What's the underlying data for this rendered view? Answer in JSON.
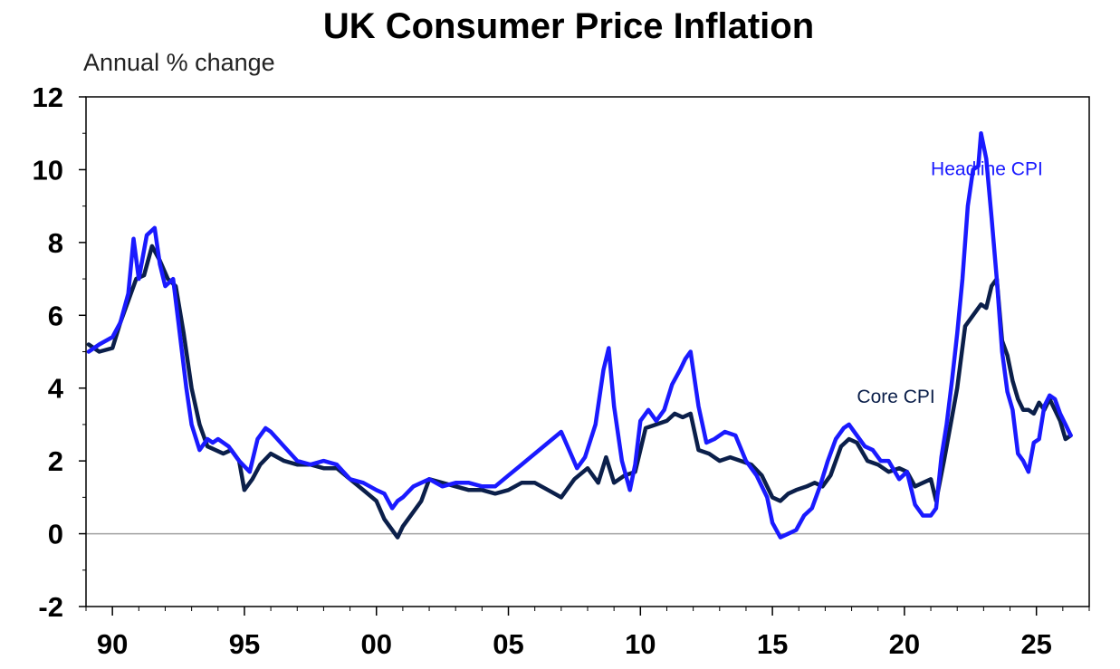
{
  "chart_data": {
    "type": "line",
    "title": "UK Consumer Price Inflation",
    "subtitle": "Annual % change",
    "xlabel": "",
    "ylabel": "",
    "xlim": [
      1989.0,
      2027.0
    ],
    "ylim": [
      -2,
      12
    ],
    "x_ticks": [
      {
        "x": 1990,
        "label": "90"
      },
      {
        "x": 1995,
        "label": "95"
      },
      {
        "x": 2000,
        "label": "00"
      },
      {
        "x": 2005,
        "label": "05"
      },
      {
        "x": 2010,
        "label": "10"
      },
      {
        "x": 2015,
        "label": "15"
      },
      {
        "x": 2020,
        "label": "20"
      },
      {
        "x": 2025,
        "label": "25"
      }
    ],
    "y_ticks": [
      12,
      10,
      8,
      6,
      4,
      2,
      0,
      -2
    ],
    "grid": false,
    "zero_line": true,
    "colors": {
      "headline": "#1a1aff",
      "core": "#0b1f4a",
      "zero_line": "#a0a0a0",
      "frame": "#000000"
    },
    "series": [
      {
        "name": "Headline CPI",
        "color": "#1a1aff",
        "x": [
          1989.1,
          1989.5,
          1990.0,
          1990.3,
          1990.6,
          1990.8,
          1991.0,
          1991.3,
          1991.6,
          1991.8,
          1992.0,
          1992.3,
          1992.5,
          1992.8,
          1993.0,
          1993.3,
          1993.6,
          1993.8,
          1994.0,
          1994.4,
          1994.8,
          1995.2,
          1995.5,
          1995.8,
          1996.0,
          1996.5,
          1997.0,
          1997.5,
          1998.0,
          1998.5,
          1999.0,
          1999.5,
          2000.0,
          2000.3,
          2000.6,
          2000.8,
          2001.0,
          2001.4,
          2001.7,
          2002.0,
          2002.5,
          2003.0,
          2003.5,
          2004.0,
          2004.5,
          2005.0,
          2005.5,
          2006.0,
          2006.5,
          2007.0,
          2007.3,
          2007.6,
          2007.9,
          2008.3,
          2008.6,
          2008.8,
          2009.0,
          2009.3,
          2009.6,
          2009.8,
          2010.0,
          2010.3,
          2010.6,
          2010.9,
          2011.2,
          2011.5,
          2011.7,
          2011.9,
          2012.2,
          2012.5,
          2012.8,
          2013.2,
          2013.6,
          2014.0,
          2014.4,
          2014.8,
          2015.0,
          2015.3,
          2015.6,
          2015.9,
          2016.2,
          2016.5,
          2016.8,
          2017.1,
          2017.4,
          2017.7,
          2017.9,
          2018.2,
          2018.5,
          2018.8,
          2019.1,
          2019.4,
          2019.8,
          2020.1,
          2020.4,
          2020.7,
          2021.0,
          2021.2,
          2021.4,
          2021.6,
          2021.8,
          2022.0,
          2022.2,
          2022.4,
          2022.6,
          2022.8,
          2022.9,
          2023.1,
          2023.3,
          2023.5,
          2023.7,
          2023.9,
          2024.1,
          2024.3,
          2024.5,
          2024.7,
          2024.9,
          2025.1,
          2025.3,
          2025.5,
          2025.7,
          2025.9,
          2026.1,
          2026.3
        ],
        "y": [
          5.0,
          5.2,
          5.4,
          5.8,
          6.6,
          8.1,
          7.0,
          8.2,
          8.4,
          7.4,
          6.8,
          7.0,
          5.8,
          4.0,
          3.0,
          2.3,
          2.6,
          2.5,
          2.6,
          2.4,
          2.0,
          1.7,
          2.6,
          2.9,
          2.8,
          2.4,
          2.0,
          1.9,
          2.0,
          1.9,
          1.5,
          1.4,
          1.2,
          1.1,
          0.7,
          0.9,
          1.0,
          1.3,
          1.4,
          1.5,
          1.3,
          1.4,
          1.4,
          1.3,
          1.3,
          1.6,
          1.9,
          2.2,
          2.5,
          2.8,
          2.3,
          1.8,
          2.1,
          3.0,
          4.5,
          5.1,
          3.5,
          2.0,
          1.2,
          1.9,
          3.1,
          3.4,
          3.1,
          3.4,
          4.1,
          4.5,
          4.8,
          5.0,
          3.5,
          2.5,
          2.6,
          2.8,
          2.7,
          2.0,
          1.6,
          1.0,
          0.3,
          -0.1,
          0.0,
          0.1,
          0.5,
          0.7,
          1.3,
          2.0,
          2.6,
          2.9,
          3.0,
          2.7,
          2.4,
          2.3,
          2.0,
          2.0,
          1.5,
          1.7,
          0.8,
          0.5,
          0.5,
          0.7,
          2.1,
          3.0,
          4.2,
          5.5,
          7.0,
          9.0,
          10.0,
          10.1,
          11.0,
          10.3,
          8.7,
          7.0,
          5.0,
          3.9,
          3.4,
          2.2,
          2.0,
          1.7,
          2.5,
          2.6,
          3.5,
          3.8,
          3.7,
          3.3,
          3.0,
          2.7
        ]
      },
      {
        "name": "Core CPI",
        "color": "#0b1f4a",
        "x": [
          1989.1,
          1989.5,
          1990.0,
          1990.3,
          1990.6,
          1990.9,
          1991.2,
          1991.5,
          1991.8,
          1992.1,
          1992.4,
          1992.7,
          1993.0,
          1993.3,
          1993.6,
          1993.9,
          1994.2,
          1994.5,
          1994.8,
          1995.0,
          1995.3,
          1995.6,
          1996.0,
          1996.5,
          1997.0,
          1997.5,
          1998.0,
          1998.5,
          1999.0,
          1999.5,
          2000.0,
          2000.3,
          2000.5,
          2000.8,
          2001.0,
          2001.4,
          2001.7,
          2002.0,
          2002.5,
          2003.0,
          2003.5,
          2004.0,
          2004.5,
          2005.0,
          2005.5,
          2006.0,
          2006.5,
          2007.0,
          2007.5,
          2008.0,
          2008.4,
          2008.7,
          2009.0,
          2009.4,
          2009.8,
          2010.2,
          2010.6,
          2011.0,
          2011.3,
          2011.6,
          2011.9,
          2012.2,
          2012.6,
          2013.0,
          2013.4,
          2013.8,
          2014.2,
          2014.6,
          2015.0,
          2015.3,
          2015.6,
          2015.9,
          2016.3,
          2016.6,
          2016.9,
          2017.2,
          2017.6,
          2017.9,
          2018.2,
          2018.6,
          2019.0,
          2019.4,
          2019.8,
          2020.1,
          2020.4,
          2020.7,
          2021.0,
          2021.2,
          2021.5,
          2021.8,
          2022.0,
          2022.3,
          2022.6,
          2022.9,
          2023.1,
          2023.3,
          2023.5,
          2023.7,
          2023.9,
          2024.1,
          2024.3,
          2024.5,
          2024.7,
          2024.9,
          2025.1,
          2025.3,
          2025.5,
          2025.7,
          2025.9,
          2026.1,
          2026.3
        ],
        "y": [
          5.2,
          5.0,
          5.1,
          5.8,
          6.4,
          7.0,
          7.1,
          7.9,
          7.5,
          7.0,
          6.8,
          5.5,
          4.0,
          3.0,
          2.4,
          2.3,
          2.2,
          2.3,
          2.0,
          1.2,
          1.5,
          1.9,
          2.2,
          2.0,
          1.9,
          1.9,
          1.8,
          1.8,
          1.5,
          1.2,
          0.9,
          0.4,
          0.2,
          -0.1,
          0.2,
          0.6,
          0.9,
          1.5,
          1.4,
          1.3,
          1.2,
          1.2,
          1.1,
          1.2,
          1.4,
          1.4,
          1.2,
          1.0,
          1.5,
          1.8,
          1.4,
          2.1,
          1.4,
          1.6,
          1.7,
          2.9,
          3.0,
          3.1,
          3.3,
          3.2,
          3.3,
          2.3,
          2.2,
          2.0,
          2.1,
          2.0,
          1.9,
          1.6,
          1.0,
          0.9,
          1.1,
          1.2,
          1.3,
          1.4,
          1.3,
          1.6,
          2.4,
          2.6,
          2.5,
          2.0,
          1.9,
          1.7,
          1.8,
          1.7,
          1.3,
          1.4,
          1.5,
          0.9,
          2.0,
          3.2,
          4.0,
          5.7,
          6.0,
          6.3,
          6.2,
          6.8,
          7.0,
          5.3,
          4.9,
          4.2,
          3.7,
          3.4,
          3.4,
          3.3,
          3.6,
          3.4,
          3.7,
          3.4,
          3.1,
          2.6,
          2.7
        ]
      }
    ],
    "annotations": [
      {
        "text": "Headline CPI",
        "series": "Headline CPI",
        "x": 2021.0,
        "y": 9.85
      },
      {
        "text": "Core CPI",
        "series": "Core CPI",
        "x": 2018.2,
        "y": 3.6
      }
    ]
  }
}
